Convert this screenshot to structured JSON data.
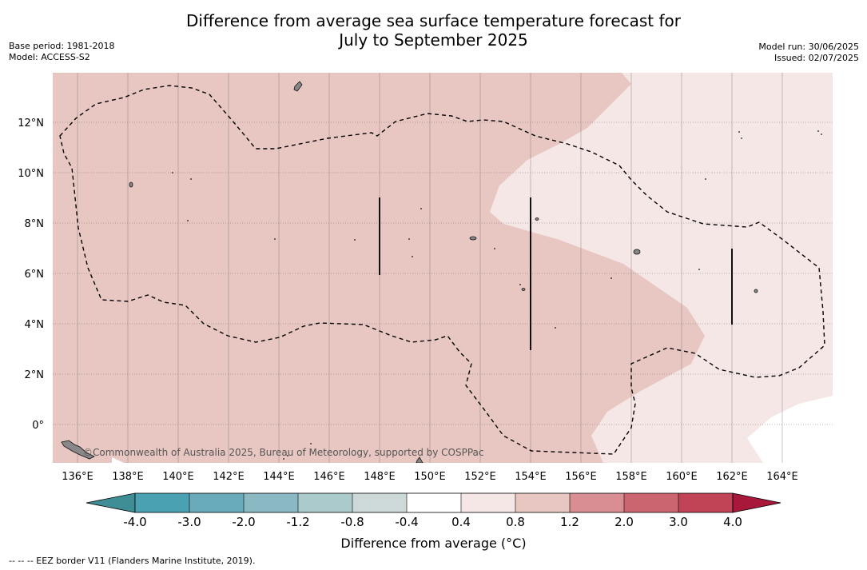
{
  "header": {
    "title_line1": "Difference from average sea surface temperature forecast for",
    "title_line2": "July to September 2025",
    "base_period": "Base period: 1981-2018",
    "model": "Model: ACCESS-S2",
    "model_run": "Model run: 30/06/2025",
    "issued": "Issued: 02/07/2025"
  },
  "map": {
    "lon_labels": [
      "136°E",
      "138°E",
      "140°E",
      "142°E",
      "144°E",
      "146°E",
      "148°E",
      "150°E",
      "152°E",
      "154°E",
      "156°E",
      "158°E",
      "160°E",
      "162°E",
      "164°E"
    ],
    "lat_labels": [
      "12°N",
      "10°N",
      "8°N",
      "6°N",
      "4°N",
      "2°N",
      "0°"
    ],
    "copyright": "©Commonwealth of Australia 2025, Bureau of Meteorology, supported by COSPPac",
    "colors": {
      "band_0_4_to_0_8": "#f5e7e5",
      "band_0_8_to_1_2": "#e8c7c2",
      "land": "#888888",
      "ocean_none": "#ffffff"
    }
  },
  "colorbar": {
    "label": "Difference from average (°C)",
    "tick_labels": [
      "-4.0",
      "-3.0",
      "-2.0",
      "-1.2",
      "-0.8",
      "-0.4",
      "0.4",
      "0.8",
      "1.2",
      "2.0",
      "3.0",
      "4.0"
    ],
    "colors": [
      "#3f8e96",
      "#4aa1b1",
      "#6aabbb",
      "#8ab8c3",
      "#aacacc",
      "#cdd8d8",
      "#ffffff",
      "#f5e7e5",
      "#e8c7c2",
      "#d98e94",
      "#cb6670",
      "#c04456",
      "#a8183a"
    ]
  },
  "footnote": "--  --  -- EEZ border V11 (Flanders Marine Institute, 2019)."
}
